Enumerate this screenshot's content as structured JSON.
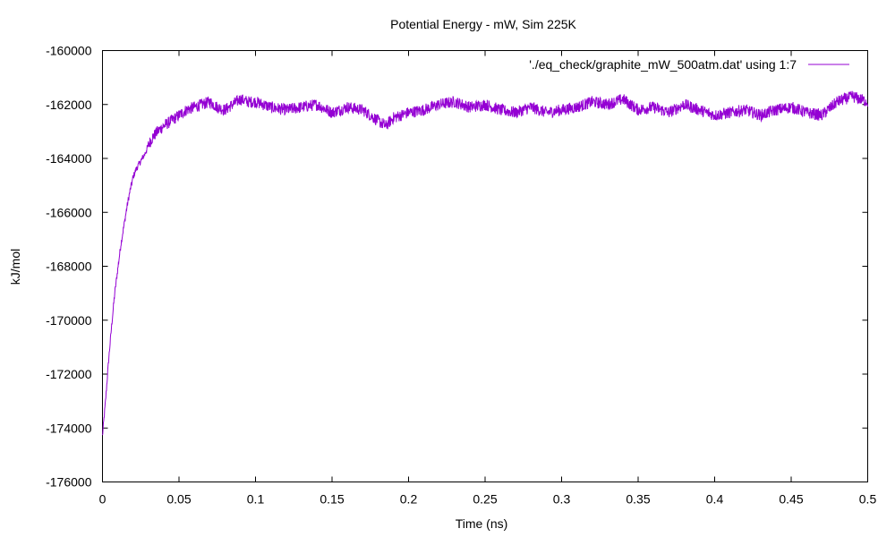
{
  "chart_data": {
    "type": "line",
    "title": "Potential Energy - mW, Sim 225K",
    "xlabel": "Time (ns)",
    "ylabel": "kJ/mol",
    "xlim": [
      0,
      0.5
    ],
    "ylim": [
      -176000,
      -160000
    ],
    "xticks": [
      0,
      0.05,
      0.1,
      0.15,
      0.2,
      0.25,
      0.3,
      0.35,
      0.4,
      0.45,
      0.5
    ],
    "xtick_labels": [
      "0",
      "0.05",
      "0.1",
      "0.15",
      "0.2",
      "0.25",
      "0.3",
      "0.35",
      "0.4",
      "0.45",
      "0.5"
    ],
    "yticks": [
      -176000,
      -174000,
      -172000,
      -170000,
      -168000,
      -166000,
      -164000,
      -162000,
      -160000
    ],
    "ytick_labels": [
      "-176000",
      "-174000",
      "-172000",
      "-170000",
      "-168000",
      "-166000",
      "-164000",
      "-162000",
      "-160000"
    ],
    "grid": false,
    "legend_position": "top-right",
    "series": [
      {
        "name": "'./eq_check/graphite_mW_500atm.dat' using 1:7",
        "color": "#9400d3",
        "x": [
          0,
          0.002,
          0.004,
          0.006,
          0.008,
          0.01,
          0.012,
          0.014,
          0.016,
          0.018,
          0.02,
          0.022,
          0.025,
          0.028,
          0.03,
          0.033,
          0.036,
          0.04,
          0.045,
          0.05,
          0.055,
          0.06,
          0.065,
          0.07,
          0.075,
          0.08,
          0.085,
          0.09,
          0.095,
          0.1,
          0.11,
          0.12,
          0.13,
          0.14,
          0.15,
          0.16,
          0.17,
          0.18,
          0.185,
          0.19,
          0.2,
          0.21,
          0.22,
          0.23,
          0.24,
          0.25,
          0.26,
          0.27,
          0.28,
          0.29,
          0.3,
          0.31,
          0.32,
          0.33,
          0.34,
          0.35,
          0.36,
          0.37,
          0.38,
          0.39,
          0.4,
          0.41,
          0.42,
          0.43,
          0.44,
          0.45,
          0.46,
          0.47,
          0.48,
          0.49,
          0.5
        ],
        "y": [
          -174300,
          -173000,
          -171500,
          -170200,
          -169000,
          -168100,
          -167200,
          -166500,
          -165800,
          -165200,
          -164700,
          -164400,
          -164100,
          -163800,
          -163500,
          -163200,
          -163000,
          -162800,
          -162600,
          -162400,
          -162200,
          -162100,
          -162000,
          -161900,
          -162100,
          -162200,
          -162000,
          -161800,
          -161900,
          -161900,
          -162100,
          -162200,
          -162100,
          -162000,
          -162300,
          -162100,
          -162200,
          -162600,
          -162800,
          -162500,
          -162300,
          -162200,
          -162000,
          -161900,
          -162100,
          -162000,
          -162200,
          -162300,
          -162100,
          -162300,
          -162200,
          -162100,
          -161900,
          -162000,
          -161800,
          -162200,
          -162100,
          -162300,
          -162000,
          -162200,
          -162400,
          -162300,
          -162200,
          -162400,
          -162200,
          -162100,
          -162300,
          -162400,
          -161900,
          -161700,
          -161900
        ]
      }
    ]
  }
}
